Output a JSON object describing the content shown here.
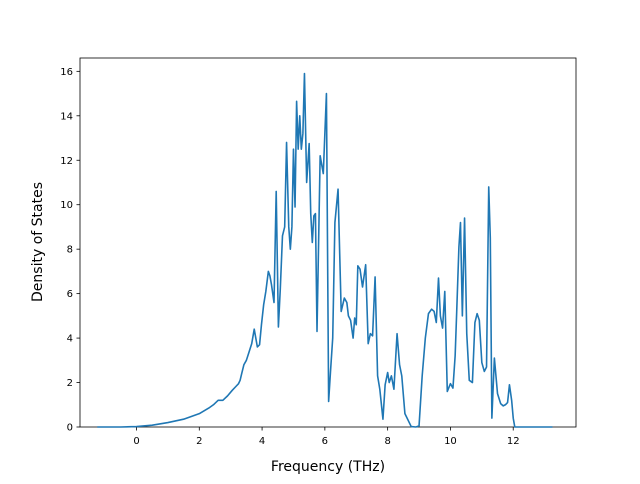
{
  "chart_data": {
    "type": "line",
    "title": "",
    "xlabel": "Frequency (THz)",
    "ylabel": "Density of States",
    "xlim": [
      -1.8,
      14.0
    ],
    "ylim": [
      0,
      16.6
    ],
    "grid": false,
    "x_ticks": [
      0,
      2,
      4,
      6,
      8,
      10,
      12
    ],
    "y_ticks": [
      0,
      2,
      4,
      6,
      8,
      10,
      12,
      14,
      16
    ],
    "x_tick_labels": [
      "0",
      "2",
      "4",
      "6",
      "8",
      "10",
      "12"
    ],
    "y_tick_labels": [
      "0",
      "2",
      "4",
      "6",
      "8",
      "10",
      "12",
      "14",
      "16"
    ],
    "line_color": "#1f77b4",
    "series": [
      {
        "x": [
          -1.25,
          -0.5,
          0.0,
          0.5,
          1.0,
          1.5,
          2.0,
          2.3,
          2.45,
          2.6,
          2.75,
          2.9,
          3.05,
          3.15,
          3.25,
          3.3,
          3.35,
          3.42,
          3.5,
          3.58,
          3.67,
          3.75,
          3.85,
          3.92,
          3.98,
          4.05,
          4.12,
          4.2,
          4.25,
          4.3,
          4.38,
          4.45,
          4.52,
          4.58,
          4.65,
          4.72,
          4.78,
          4.85,
          4.9,
          4.95,
          5.0,
          5.05,
          5.1,
          5.15,
          5.2,
          5.25,
          5.3,
          5.35,
          5.42,
          5.5,
          5.55,
          5.6,
          5.65,
          5.7,
          5.75,
          5.85,
          5.95,
          6.05,
          6.12,
          6.18,
          6.25,
          6.32,
          6.42,
          6.52,
          6.62,
          6.7,
          6.75,
          6.82,
          6.9,
          6.95,
          7.0,
          7.05,
          7.12,
          7.2,
          7.3,
          7.38,
          7.45,
          7.52,
          7.6,
          7.68,
          7.75,
          7.85,
          7.92,
          8.0,
          8.05,
          8.12,
          8.2,
          8.3,
          8.38,
          8.45,
          8.55,
          8.75,
          8.9,
          9.0,
          9.1,
          9.2,
          9.3,
          9.4,
          9.48,
          9.55,
          9.62,
          9.68,
          9.75,
          9.82,
          9.9,
          10.0,
          10.08,
          10.15,
          10.2,
          10.27,
          10.32,
          10.38,
          10.45,
          10.52,
          10.6,
          10.7,
          10.78,
          10.85,
          10.92,
          11.0,
          11.08,
          11.15,
          11.22,
          11.27,
          11.32,
          11.4,
          11.5,
          11.6,
          11.68,
          11.75,
          11.82,
          11.88,
          11.95,
          12.0,
          12.05,
          12.15,
          12.5,
          13.25
        ],
        "y": [
          0,
          0,
          0.02,
          0.08,
          0.2,
          0.35,
          0.6,
          0.85,
          1.0,
          1.2,
          1.2,
          1.4,
          1.65,
          1.8,
          1.95,
          2.1,
          2.4,
          2.8,
          3.0,
          3.35,
          3.75,
          4.4,
          3.6,
          3.7,
          4.6,
          5.5,
          6.1,
          7.0,
          6.8,
          6.4,
          5.6,
          10.6,
          4.5,
          6.2,
          8.6,
          9.0,
          12.8,
          9.0,
          8.0,
          9.0,
          12.5,
          9.9,
          14.65,
          12.5,
          14.0,
          12.5,
          13.2,
          15.9,
          11.0,
          12.75,
          9.6,
          8.3,
          9.5,
          9.6,
          4.3,
          12.2,
          11.4,
          15.0,
          1.15,
          2.5,
          4.0,
          9.2,
          10.7,
          5.2,
          5.8,
          5.6,
          5.0,
          4.8,
          4.0,
          4.9,
          4.6,
          7.25,
          7.1,
          6.3,
          7.3,
          3.75,
          4.2,
          4.1,
          6.75,
          2.3,
          1.7,
          0.35,
          1.9,
          2.45,
          2.0,
          2.3,
          1.7,
          4.2,
          2.8,
          2.3,
          0.6,
          0.02,
          0,
          0.05,
          2.3,
          4.0,
          5.1,
          5.3,
          5.2,
          4.7,
          6.7,
          5.0,
          4.45,
          6.1,
          1.6,
          1.95,
          1.75,
          3.2,
          5.2,
          8.1,
          9.2,
          5.0,
          9.4,
          4.2,
          2.1,
          2.0,
          4.7,
          5.1,
          4.8,
          2.9,
          2.5,
          2.7,
          10.8,
          8.5,
          0.4,
          3.1,
          1.5,
          1.05,
          0.95,
          1.0,
          1.1,
          1.9,
          1.2,
          0.4,
          0,
          0,
          0,
          0
        ]
      }
    ]
  }
}
